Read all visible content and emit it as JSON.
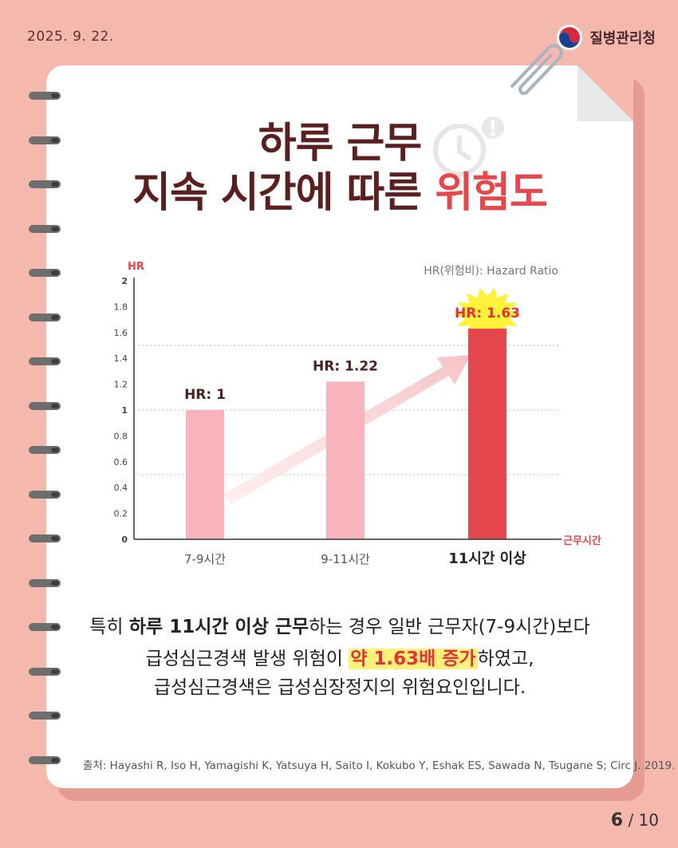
{
  "header": {
    "date": "2025. 9. 22.",
    "org": "질병관리청"
  },
  "title": {
    "line1": "하루 근무",
    "line2_prefix": "지속 시간에 따른 ",
    "line2_highlight": "위험도"
  },
  "chart_data": {
    "type": "bar",
    "ylabel": "HR",
    "xlabel": "근무시간",
    "note": "HR(위험비): Hazard Ratio",
    "ylim": [
      0,
      2
    ],
    "yticks": [
      "0",
      "0.2",
      "0.4",
      "0.6",
      "0.8",
      "1",
      "1.2",
      "1.4",
      "1.6",
      "1.8",
      "2"
    ],
    "categories": [
      "7-9시간",
      "9-11시간",
      "11시간 이상"
    ],
    "values": [
      1,
      1.22,
      1.63
    ],
    "data_labels": [
      "HR: 1",
      "HR: 1.22",
      "HR: 1.63"
    ],
    "colors": [
      "#f9b3bd",
      "#f9b3bd",
      "#e5474f"
    ],
    "gridlines": [
      0.5,
      1,
      1.5
    ]
  },
  "description": {
    "line1_a": "특히 ",
    "line1_b": "하루 11시간 이상 근무",
    "line1_c": "하는 경우 일반 근무자(7-9시간)보다",
    "line2_a": "급성심근경색 발생 위험이 ",
    "line2_b": "약 1.63배 증가",
    "line2_c": "하였고,",
    "line3": "급성심근경색은 급성심장정지의 위험요인입니다."
  },
  "source": "출처: Hayashi R, Iso H, Yamagishi K, Yatsuya H, Saito I, Kokubo Y, Eshak ES, Sawada N, Tsugane S; Circ J. 2019.",
  "pager": {
    "current": "6",
    "total": " / 10"
  }
}
